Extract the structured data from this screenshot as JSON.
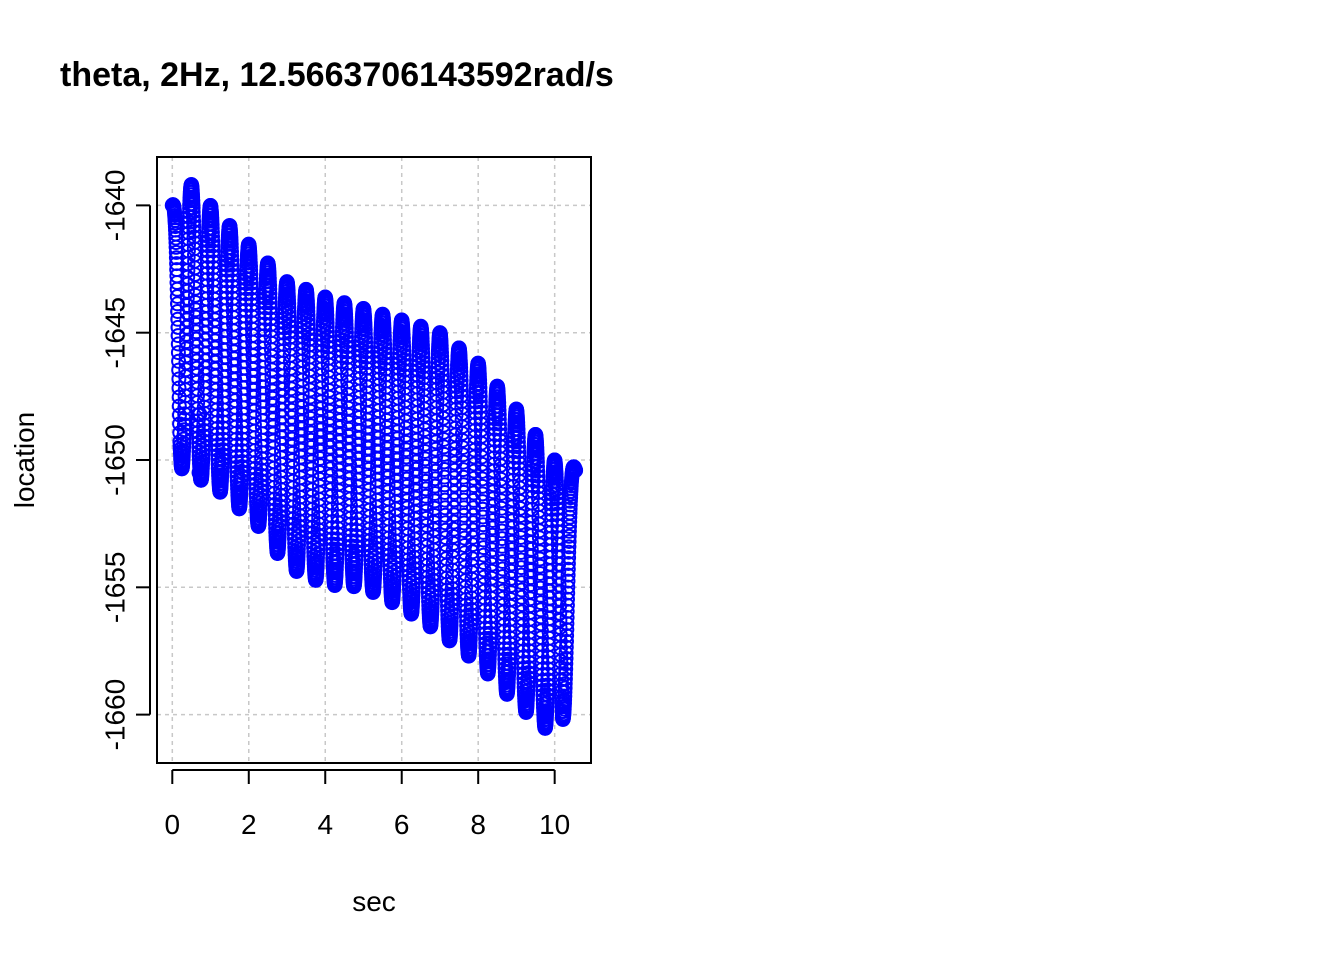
{
  "chart_data": {
    "type": "scatter",
    "title": "theta, 2Hz, 12.5663706143592rad/s",
    "xlabel": "sec",
    "ylabel": "location",
    "xlim": [
      -0.4,
      10.95
    ],
    "ylim": [
      -1661.9,
      -1638.1
    ],
    "x_ticks": [
      0,
      2,
      4,
      6,
      8,
      10
    ],
    "x_tick_labels": [
      "0",
      "2",
      "4",
      "6",
      "8",
      "10"
    ],
    "y_ticks": [
      -1640,
      -1645,
      -1650,
      -1655,
      -1660
    ],
    "y_tick_labels": [
      "-1640",
      "-1645",
      "-1650",
      "-1655",
      "-1660"
    ],
    "grid": true,
    "marker": "open-circle",
    "color": "#0000ff",
    "grid_color": "#c8c8c8",
    "signal": {
      "frequency_hz": 2,
      "x_start": 0,
      "x_end": 10.55,
      "envelope_top": [
        [
          0,
          -1640.0
        ],
        [
          0.45,
          -1639.1
        ],
        [
          1.3,
          -1640.5
        ],
        [
          3.0,
          -1643.0
        ],
        [
          4.0,
          -1643.6
        ],
        [
          6.0,
          -1644.5
        ],
        [
          7.0,
          -1645.0
        ],
        [
          8.0,
          -1646.2
        ],
        [
          9.0,
          -1648.0
        ],
        [
          10.0,
          -1650.0
        ],
        [
          10.55,
          -1650.3
        ]
      ],
      "envelope_bottom": [
        [
          0,
          -1640.0
        ],
        [
          0.2,
          -1650.3
        ],
        [
          1.2,
          -1651.2
        ],
        [
          2.2,
          -1652.5
        ],
        [
          3.0,
          -1654.2
        ],
        [
          4.0,
          -1654.9
        ],
        [
          5.0,
          -1655.0
        ],
        [
          6.0,
          -1655.8
        ],
        [
          7.0,
          -1656.8
        ],
        [
          8.0,
          -1658.0
        ],
        [
          9.0,
          -1659.6
        ],
        [
          10.2,
          -1661.1
        ],
        [
          10.55,
          -1651.5
        ]
      ]
    },
    "outlier_points": [
      {
        "x": 0.72,
        "y": -1648.2
      },
      {
        "x": 0.7,
        "y": -1650.5
      }
    ]
  }
}
